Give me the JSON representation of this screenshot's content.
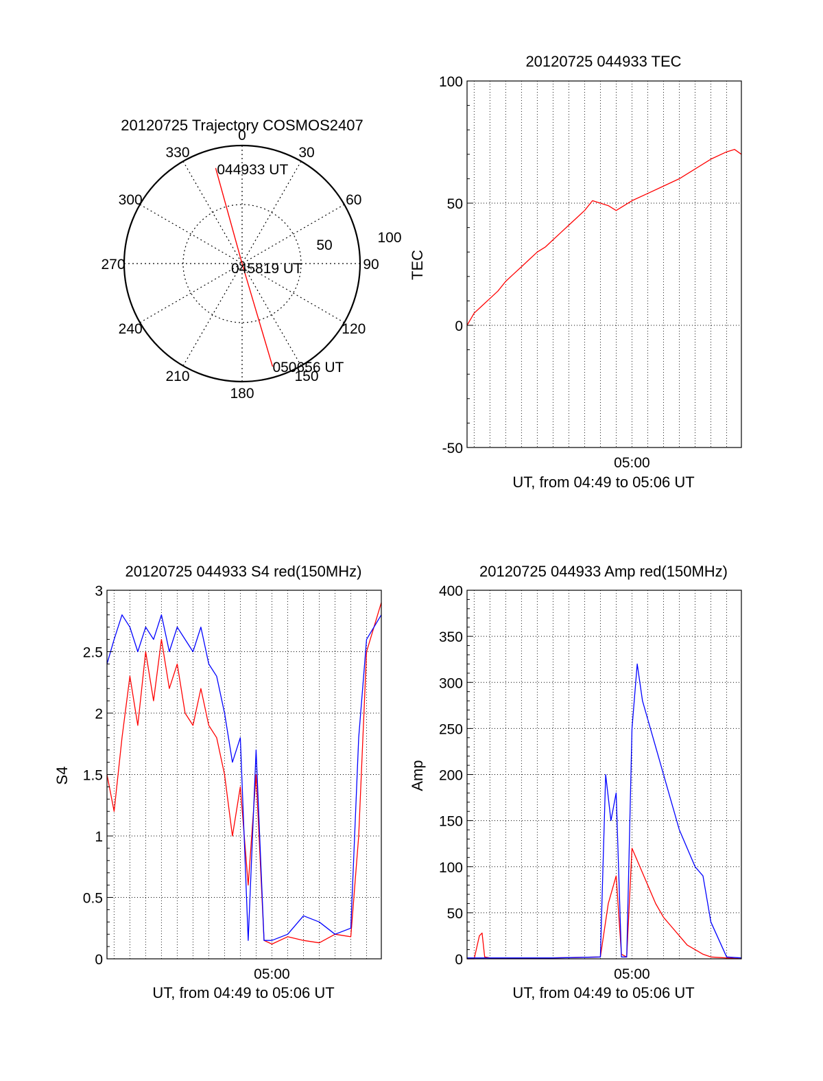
{
  "colors": {
    "red": "#ff0000",
    "blue": "#0000ff",
    "axis": "#000000",
    "grid": "#000000"
  },
  "chart_data": [
    {
      "type": "polar",
      "title": "20120725 Trajectory COSMOS2407",
      "azimuth_labels": [
        "0",
        "30",
        "60",
        "90",
        "120",
        "150",
        "180",
        "210",
        "240",
        "270",
        "300",
        "330"
      ],
      "radial_labels": [
        "50",
        "100"
      ],
      "rlim": [
        0,
        100
      ],
      "grid": true,
      "series": [
        {
          "color": "#ff0000",
          "points": [
            {
              "az": -15.5,
              "r": 84,
              "label": "044933 UT"
            },
            {
              "az": 155,
              "r": 0,
              "label": "045819 UT"
            },
            {
              "az": 163.5,
              "r": 91,
              "label": "050656 UT"
            }
          ]
        }
      ],
      "annotations": [
        "044933 UT",
        "045819 UT",
        "050656 UT"
      ]
    },
    {
      "type": "line",
      "title": "20120725 044933 TEC",
      "xlabel": "UT, from 04:49 to 05:06 UT",
      "ylabel": "TEC",
      "x_tick_labels": [
        "05:00"
      ],
      "y_tick_labels": [
        "100",
        "50",
        "0",
        "-50"
      ],
      "xlim": [
        "04:49:33",
        "05:06:56"
      ],
      "ylim": [
        -50,
        100
      ],
      "grid": true,
      "series": [
        {
          "color": "#ff0000",
          "x": [
            "04:49:33",
            "04:50:00",
            "04:50:30",
            "04:51:00",
            "04:51:30",
            "04:52:00",
            "04:52:30",
            "04:53:00",
            "04:53:30",
            "04:54:00",
            "04:54:30",
            "04:55:00",
            "04:55:30",
            "04:56:00",
            "04:56:30",
            "04:57:00",
            "04:57:30",
            "04:58:00",
            "04:58:30",
            "04:59:00",
            "04:59:30",
            "05:00:00",
            "05:01:00",
            "05:02:00",
            "05:03:00",
            "05:04:00",
            "05:05:00",
            "05:06:00",
            "05:06:30",
            "05:06:56"
          ],
          "y": [
            0,
            5,
            8,
            11,
            14,
            18,
            21,
            24,
            27,
            30,
            32,
            35,
            38,
            41,
            44,
            47,
            51,
            50,
            49,
            47,
            49,
            51,
            54,
            57,
            60,
            64,
            68,
            71,
            72,
            70
          ]
        }
      ]
    },
    {
      "type": "line",
      "title": "20120725 044933 S4 red(150MHz)",
      "xlabel": "UT, from 04:49 to 05:06 UT",
      "ylabel": "S4",
      "x_tick_labels": [
        "05:00"
      ],
      "y_tick_labels": [
        "3",
        "2.5",
        "2",
        "1.5",
        "1",
        "0.5",
        "0"
      ],
      "xlim": [
        "04:49:33",
        "05:06:56"
      ],
      "ylim": [
        0,
        3
      ],
      "grid": true,
      "series": [
        {
          "name": "",
          "color": "#ff0000",
          "x": [
            "04:49:33",
            "04:50:00",
            "04:50:30",
            "04:51:00",
            "04:51:30",
            "04:52:00",
            "04:52:30",
            "04:53:00",
            "04:53:30",
            "04:54:00",
            "04:54:30",
            "04:55:00",
            "04:55:30",
            "04:56:00",
            "04:56:30",
            "04:57:00",
            "04:57:30",
            "04:58:00",
            "04:58:30",
            "04:59:00",
            "04:59:30",
            "05:00:00",
            "05:01:00",
            "05:02:00",
            "05:03:00",
            "05:04:00",
            "05:05:00",
            "05:05:30",
            "05:06:00",
            "05:06:56"
          ],
          "y": [
            1.5,
            1.2,
            1.8,
            2.3,
            1.9,
            2.5,
            2.1,
            2.6,
            2.2,
            2.4,
            2.0,
            1.9,
            2.2,
            1.9,
            1.8,
            1.5,
            1.0,
            1.4,
            0.6,
            1.5,
            0.15,
            0.12,
            0.18,
            0.15,
            0.13,
            0.2,
            0.18,
            1.0,
            2.5,
            2.9
          ]
        },
        {
          "name": "",
          "color": "#0000ff",
          "x": [
            "04:49:33",
            "04:50:00",
            "04:50:30",
            "04:51:00",
            "04:51:30",
            "04:52:00",
            "04:52:30",
            "04:53:00",
            "04:53:30",
            "04:54:00",
            "04:54:30",
            "04:55:00",
            "04:55:30",
            "04:56:00",
            "04:56:30",
            "04:57:00",
            "04:57:30",
            "04:58:00",
            "04:58:30",
            "04:59:00",
            "04:59:30",
            "05:00:00",
            "05:01:00",
            "05:02:00",
            "05:03:00",
            "05:04:00",
            "05:05:00",
            "05:05:30",
            "05:06:00",
            "05:06:56"
          ],
          "y": [
            2.4,
            2.6,
            2.8,
            2.7,
            2.5,
            2.7,
            2.6,
            2.8,
            2.5,
            2.7,
            2.6,
            2.5,
            2.7,
            2.4,
            2.3,
            2.0,
            1.6,
            1.8,
            0.15,
            1.7,
            0.15,
            0.15,
            0.2,
            0.35,
            0.3,
            0.2,
            0.25,
            1.8,
            2.6,
            2.8
          ]
        }
      ]
    },
    {
      "type": "line",
      "title": "20120725 044933 Amp red(150MHz)",
      "xlabel": "UT, from 04:49 to 05:06 UT",
      "ylabel": "Amp",
      "x_tick_labels": [
        "05:00"
      ],
      "y_tick_labels": [
        "400",
        "350",
        "300",
        "250",
        "200",
        "150",
        "100",
        "50",
        "0"
      ],
      "xlim": [
        "04:49:33",
        "05:06:56"
      ],
      "ylim": [
        0,
        400
      ],
      "grid": true,
      "series": [
        {
          "name": "",
          "color": "#ff0000",
          "x": [
            "04:49:33",
            "04:50:00",
            "04:50:20",
            "04:50:30",
            "04:50:40",
            "04:51:00",
            "04:55:00",
            "04:58:00",
            "04:58:30",
            "04:59:00",
            "04:59:20",
            "04:59:40",
            "05:00:00",
            "05:00:30",
            "05:01:00",
            "05:01:30",
            "05:02:00",
            "05:02:30",
            "05:03:00",
            "05:03:30",
            "05:04:00",
            "05:04:30",
            "05:05:00",
            "05:06:56"
          ],
          "y": [
            0,
            0,
            25,
            28,
            2,
            1,
            1,
            2,
            60,
            90,
            5,
            2,
            120,
            100,
            80,
            60,
            45,
            35,
            25,
            15,
            10,
            5,
            2,
            0
          ]
        },
        {
          "name": "",
          "color": "#0000ff",
          "x": [
            "04:49:33",
            "04:51:00",
            "04:55:00",
            "04:58:00",
            "04:58:20",
            "04:58:40",
            "04:59:00",
            "04:59:20",
            "04:59:40",
            "05:00:00",
            "05:00:20",
            "05:00:40",
            "05:01:00",
            "05:01:30",
            "05:02:00",
            "05:02:30",
            "05:03:00",
            "05:03:30",
            "05:04:00",
            "05:04:30",
            "05:05:00",
            "05:06:00",
            "05:06:56"
          ],
          "y": [
            1,
            1,
            1,
            2,
            200,
            150,
            180,
            2,
            2,
            250,
            320,
            280,
            260,
            230,
            200,
            170,
            140,
            120,
            100,
            90,
            40,
            2,
            1
          ]
        }
      ]
    }
  ]
}
